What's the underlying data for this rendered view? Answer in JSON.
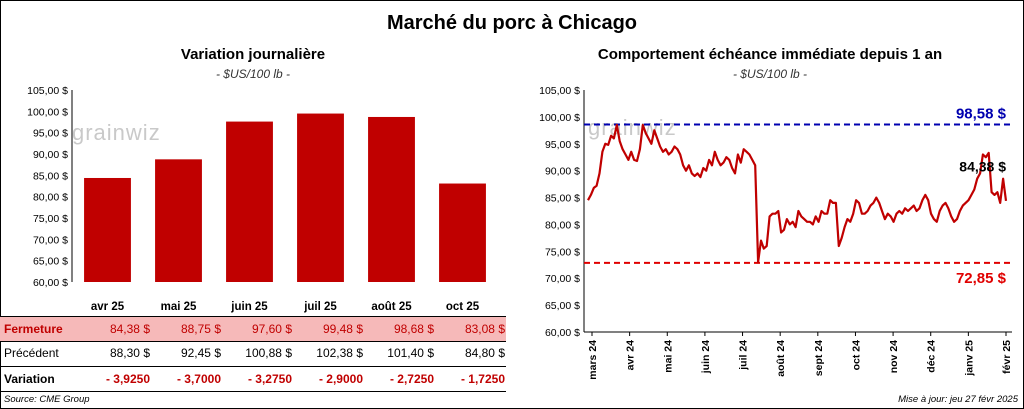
{
  "title": "Marché du porc à Chicago",
  "left": {
    "subtitle": "Variation journalière",
    "units": "- $US/100 lb -",
    "logo": "grainwiz"
  },
  "right": {
    "subtitle": "Comportement échéance immédiate depuis 1 an",
    "units": "- $US/100 lb -",
    "logo": "grainwiz"
  },
  "table": {
    "close_label": "Fermeture",
    "close": [
      "84,38 $",
      "88,75 $",
      "97,60 $",
      "99,48 $",
      "98,68 $",
      "83,08 $"
    ],
    "prev_label": "Précédent",
    "prev": [
      "88,30 $",
      "92,45 $",
      "100,88 $",
      "102,38 $",
      "101,40 $",
      "84,80 $"
    ],
    "var_label": "Variation",
    "var": [
      "- 3,9250",
      "- 3,7000",
      "- 3,2750",
      "- 2,9000",
      "- 2,7250",
      "- 1,7250"
    ]
  },
  "footer": {
    "source": "Source: CME Group",
    "update": "Mise à jour: jeu 27 févr 2025"
  },
  "colors": {
    "bar": "#c00000",
    "line": "#c00000",
    "high": "#0000b0",
    "low": "#e00000"
  },
  "chart_data": [
    {
      "type": "bar",
      "categories": [
        "avr 25",
        "mai 25",
        "juin 25",
        "juil 25",
        "août 25",
        "oct 25"
      ],
      "values": [
        84.38,
        88.75,
        97.6,
        99.48,
        98.68,
        83.08
      ],
      "ylim": [
        60,
        105
      ],
      "yticks": [
        "60,00 $",
        "65,00 $",
        "70,00 $",
        "75,00 $",
        "80,00 $",
        "85,00 $",
        "90,00 $",
        "95,00 $",
        "100,00 $",
        "105,00 $"
      ],
      "grid": false
    },
    {
      "type": "line",
      "x_labels": [
        "mars 24",
        "avr 24",
        "mai 24",
        "juin 24",
        "juil 24",
        "août 24",
        "sept 24",
        "oct 24",
        "nov 24",
        "déc 24",
        "janv 25",
        "févr 25"
      ],
      "ylim": [
        60,
        105
      ],
      "yticks": [
        "60,00 $",
        "65,00 $",
        "70,00 $",
        "75,00 $",
        "80,00 $",
        "85,00 $",
        "90,00 $",
        "95,00 $",
        "100,00 $",
        "105,00 $"
      ],
      "high": 98.58,
      "high_label": "98,58 $",
      "low": 72.85,
      "low_label": "72,85 $",
      "last_label": "84,38 $",
      "series": [
        {
          "values": [
            84.5,
            85.5,
            86.8,
            87.2,
            89.5,
            93.5,
            95.0,
            94.8,
            96.5,
            96.0,
            98.5,
            95.5,
            94.0,
            93.0,
            92.0,
            93.5,
            92.0,
            91.8,
            94.0,
            98.5,
            97.0,
            96.0,
            95.0,
            97.5,
            96.0,
            94.5,
            93.5,
            94.0,
            93.0,
            93.5,
            94.5,
            94.0,
            93.0,
            91.0,
            90.0,
            91.0,
            89.5,
            89.0,
            89.5,
            88.8,
            90.5,
            90.0,
            92.0,
            91.0,
            93.5,
            92.0,
            91.0,
            91.5,
            92.5,
            92.0,
            90.5,
            89.5,
            93.0,
            91.5,
            94.0,
            93.5,
            93.0,
            92.0,
            91.0,
            73.0,
            77.0,
            75.5,
            76.0,
            81.5,
            82.0,
            82.0,
            82.5,
            78.5,
            79.0,
            81.0,
            80.0,
            80.5,
            79.5,
            82.5,
            81.5,
            81.0,
            80.5,
            80.5,
            80.0,
            81.5,
            80.5,
            82.5,
            82.0,
            82.0,
            84.5,
            84.0,
            84.0,
            76.0,
            77.5,
            79.5,
            81.0,
            80.5,
            82.0,
            84.5,
            84.0,
            82.0,
            82.0,
            82.5,
            83.5,
            84.0,
            85.0,
            84.0,
            82.5,
            81.0,
            82.0,
            81.5,
            80.5,
            82.0,
            82.5,
            82.0,
            83.0,
            82.5,
            83.0,
            83.5,
            82.5,
            83.0,
            84.5,
            85.5,
            84.5,
            82.0,
            81.0,
            80.5,
            82.5,
            83.5,
            84.0,
            83.0,
            81.5,
            80.5,
            81.0,
            82.5,
            83.5,
            84.0,
            84.5,
            85.5,
            86.5,
            88.5,
            89.5,
            93.0,
            92.5,
            93.3,
            86.0,
            85.5,
            86.0,
            84.0,
            88.5,
            84.38
          ]
        }
      ]
    }
  ]
}
